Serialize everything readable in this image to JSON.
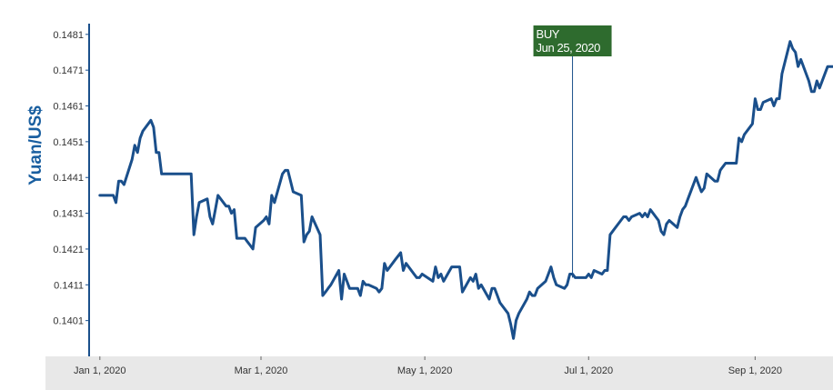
{
  "chart_data": {
    "type": "line",
    "title": "",
    "xlabel": "",
    "ylabel": "Yuan/US$",
    "ylim": [
      0.1391,
      0.1484
    ],
    "xlim": [
      "2019-12-28",
      "2020-09-30"
    ],
    "grid": false,
    "legend": "none",
    "colors": {
      "series": "#1a4f8b",
      "axis": "#1a4f8b",
      "ylabel": "#1a5fa0",
      "annotation": "#2e6b2e",
      "xaxis_band": "#e8e8e8"
    },
    "y_ticks": [
      {
        "value": 0.1401,
        "label": "0.1401"
      },
      {
        "value": 0.1411,
        "label": "0.1411"
      },
      {
        "value": 0.1421,
        "label": "0.1421"
      },
      {
        "value": 0.1431,
        "label": "0.1431"
      },
      {
        "value": 0.1441,
        "label": "0.1441"
      },
      {
        "value": 0.1451,
        "label": "0.1451"
      },
      {
        "value": 0.1461,
        "label": "0.1461"
      },
      {
        "value": 0.1471,
        "label": "0.1471"
      },
      {
        "value": 0.1481,
        "label": "0.1481"
      }
    ],
    "x_ticks": [
      {
        "date": "2020-01-01",
        "label": "Jan 1, 2020"
      },
      {
        "date": "2020-03-01",
        "label": "Mar 1, 2020"
      },
      {
        "date": "2020-05-01",
        "label": "May 1, 2020"
      },
      {
        "date": "2020-07-01",
        "label": "Jul 1, 2020"
      },
      {
        "date": "2020-09-01",
        "label": "Sep 1, 2020"
      }
    ],
    "annotation": {
      "date": "2020-06-25",
      "value": 0.1413,
      "line1": "BUY",
      "line2": "Jun 25, 2020"
    },
    "series": [
      {
        "x": [
          "2020-01-01",
          "2020-01-03",
          "2020-01-06",
          "2020-01-07",
          "2020-01-08",
          "2020-01-09",
          "2020-01-10",
          "2020-01-13",
          "2020-01-14",
          "2020-01-15",
          "2020-01-16",
          "2020-01-17",
          "2020-01-20",
          "2020-01-21",
          "2020-01-22",
          "2020-01-23",
          "2020-01-24",
          "2020-01-27",
          "2020-01-28",
          "2020-01-29",
          "2020-01-30",
          "2020-02-01",
          "2020-02-04",
          "2020-02-05",
          "2020-02-06",
          "2020-02-07",
          "2020-02-10",
          "2020-02-11",
          "2020-02-12",
          "2020-02-13",
          "2020-02-14",
          "2020-02-17",
          "2020-02-18",
          "2020-02-19",
          "2020-02-20",
          "2020-02-21",
          "2020-02-24",
          "2020-02-25",
          "2020-02-26",
          "2020-02-27",
          "2020-02-28",
          "2020-03-02",
          "2020-03-03",
          "2020-03-04",
          "2020-03-05",
          "2020-03-06",
          "2020-03-09",
          "2020-03-10",
          "2020-03-11",
          "2020-03-12",
          "2020-03-13",
          "2020-03-16",
          "2020-03-17",
          "2020-03-18",
          "2020-03-19",
          "2020-03-20",
          "2020-03-23",
          "2020-03-24",
          "2020-03-25",
          "2020-03-26",
          "2020-03-27",
          "2020-03-30",
          "2020-03-31",
          "2020-04-01",
          "2020-04-02",
          "2020-04-03",
          "2020-04-06",
          "2020-04-07",
          "2020-04-08",
          "2020-04-09",
          "2020-04-10",
          "2020-04-13",
          "2020-04-14",
          "2020-04-15",
          "2020-04-16",
          "2020-04-17",
          "2020-04-20",
          "2020-04-21",
          "2020-04-22",
          "2020-04-23",
          "2020-04-24",
          "2020-04-27",
          "2020-04-28",
          "2020-04-29",
          "2020-04-30",
          "2020-05-04",
          "2020-05-05",
          "2020-05-06",
          "2020-05-07",
          "2020-05-08",
          "2020-05-11",
          "2020-05-12",
          "2020-05-13",
          "2020-05-14",
          "2020-05-15",
          "2020-05-18",
          "2020-05-19",
          "2020-05-20",
          "2020-05-21",
          "2020-05-22",
          "2020-05-25",
          "2020-05-26",
          "2020-05-27",
          "2020-05-28",
          "2020-05-29",
          "2020-06-01",
          "2020-06-02",
          "2020-06-03",
          "2020-06-04",
          "2020-06-05",
          "2020-06-08",
          "2020-06-09",
          "2020-06-10",
          "2020-06-11",
          "2020-06-12",
          "2020-06-15",
          "2020-06-16",
          "2020-06-17",
          "2020-06-18",
          "2020-06-19",
          "2020-06-22",
          "2020-06-23",
          "2020-06-24",
          "2020-06-25",
          "2020-06-26",
          "2020-06-29",
          "2020-06-30",
          "2020-07-01",
          "2020-07-02",
          "2020-07-03",
          "2020-07-06",
          "2020-07-07",
          "2020-07-08",
          "2020-07-09",
          "2020-07-10",
          "2020-07-13",
          "2020-07-14",
          "2020-07-15",
          "2020-07-16",
          "2020-07-17",
          "2020-07-20",
          "2020-07-21",
          "2020-07-22",
          "2020-07-23",
          "2020-07-24",
          "2020-07-27",
          "2020-07-28",
          "2020-07-29",
          "2020-07-30",
          "2020-07-31",
          "2020-08-03",
          "2020-08-04",
          "2020-08-05",
          "2020-08-06",
          "2020-08-07",
          "2020-08-10",
          "2020-08-11",
          "2020-08-12",
          "2020-08-13",
          "2020-08-14",
          "2020-08-17",
          "2020-08-18",
          "2020-08-19",
          "2020-08-20",
          "2020-08-21",
          "2020-08-24",
          "2020-08-25",
          "2020-08-26",
          "2020-08-27",
          "2020-08-28",
          "2020-08-31",
          "2020-09-01",
          "2020-09-02",
          "2020-09-03",
          "2020-09-04",
          "2020-09-07",
          "2020-09-08",
          "2020-09-09",
          "2020-09-10",
          "2020-09-11",
          "2020-09-14",
          "2020-09-15",
          "2020-09-16",
          "2020-09-17",
          "2020-09-18",
          "2020-09-21",
          "2020-09-22",
          "2020-09-23",
          "2020-09-24",
          "2020-09-25",
          "2020-09-28",
          "2020-09-29",
          "2020-09-30"
        ],
        "y": [
          0.1436,
          0.1436,
          0.1436,
          0.1434,
          0.144,
          0.144,
          0.1439,
          0.1446,
          0.145,
          0.1448,
          0.1452,
          0.1454,
          0.1457,
          0.1455,
          0.1448,
          0.1448,
          0.1442,
          0.1442,
          0.1442,
          0.1442,
          0.1442,
          0.1442,
          0.1442,
          0.1425,
          0.143,
          0.1434,
          0.1435,
          0.143,
          0.1428,
          0.1432,
          0.1436,
          0.1433,
          0.1433,
          0.1431,
          0.1432,
          0.1424,
          0.1424,
          0.1423,
          0.1422,
          0.1421,
          0.1427,
          0.1429,
          0.143,
          0.1428,
          0.1436,
          0.1434,
          0.1442,
          0.1443,
          0.1443,
          0.144,
          0.1437,
          0.1436,
          0.1423,
          0.1425,
          0.1426,
          0.143,
          0.1425,
          0.1408,
          0.1409,
          0.141,
          0.1411,
          0.1415,
          0.1407,
          0.1414,
          0.1412,
          0.141,
          0.141,
          0.1408,
          0.1412,
          0.1411,
          0.1411,
          0.141,
          0.1409,
          0.141,
          0.1417,
          0.1415,
          0.1418,
          0.1419,
          0.142,
          0.1415,
          0.1417,
          0.1414,
          0.1413,
          0.1413,
          0.1414,
          0.1412,
          0.1416,
          0.1413,
          0.1414,
          0.1412,
          0.1416,
          0.1416,
          0.1416,
          0.1416,
          0.1409,
          0.1413,
          0.1412,
          0.1414,
          0.141,
          0.1411,
          0.1407,
          0.141,
          0.141,
          0.1408,
          0.1406,
          0.1403,
          0.14,
          0.1396,
          0.1401,
          0.1403,
          0.1407,
          0.1409,
          0.1408,
          0.1408,
          0.141,
          0.1412,
          0.1414,
          0.1416,
          0.1413,
          0.1411,
          0.141,
          0.1411,
          0.1414,
          0.1414,
          0.1413,
          0.1413,
          0.1413,
          0.1414,
          0.1413,
          0.1415,
          0.1414,
          0.1415,
          0.1415,
          0.1425,
          0.1426,
          0.1429,
          0.143,
          0.143,
          0.1429,
          0.143,
          0.1431,
          0.143,
          0.1431,
          0.143,
          0.1432,
          0.1429,
          0.1426,
          0.1425,
          0.1428,
          0.1429,
          0.1427,
          0.143,
          0.1432,
          0.1433,
          0.1435,
          0.1441,
          0.1439,
          0.1437,
          0.1438,
          0.1442,
          0.144,
          0.144,
          0.1443,
          0.1444,
          0.1445,
          0.1445,
          0.1445,
          0.1452,
          0.1451,
          0.1453,
          0.1456,
          0.1463,
          0.146,
          0.146,
          0.1462,
          0.1463,
          0.1461,
          0.1463,
          0.1463,
          0.147,
          0.1479,
          0.1477,
          0.1476,
          0.1472,
          0.1474,
          0.1468,
          0.1465,
          0.1465,
          0.1468,
          0.1466,
          0.1472,
          0.1472,
          0.1472
        ]
      }
    ]
  }
}
